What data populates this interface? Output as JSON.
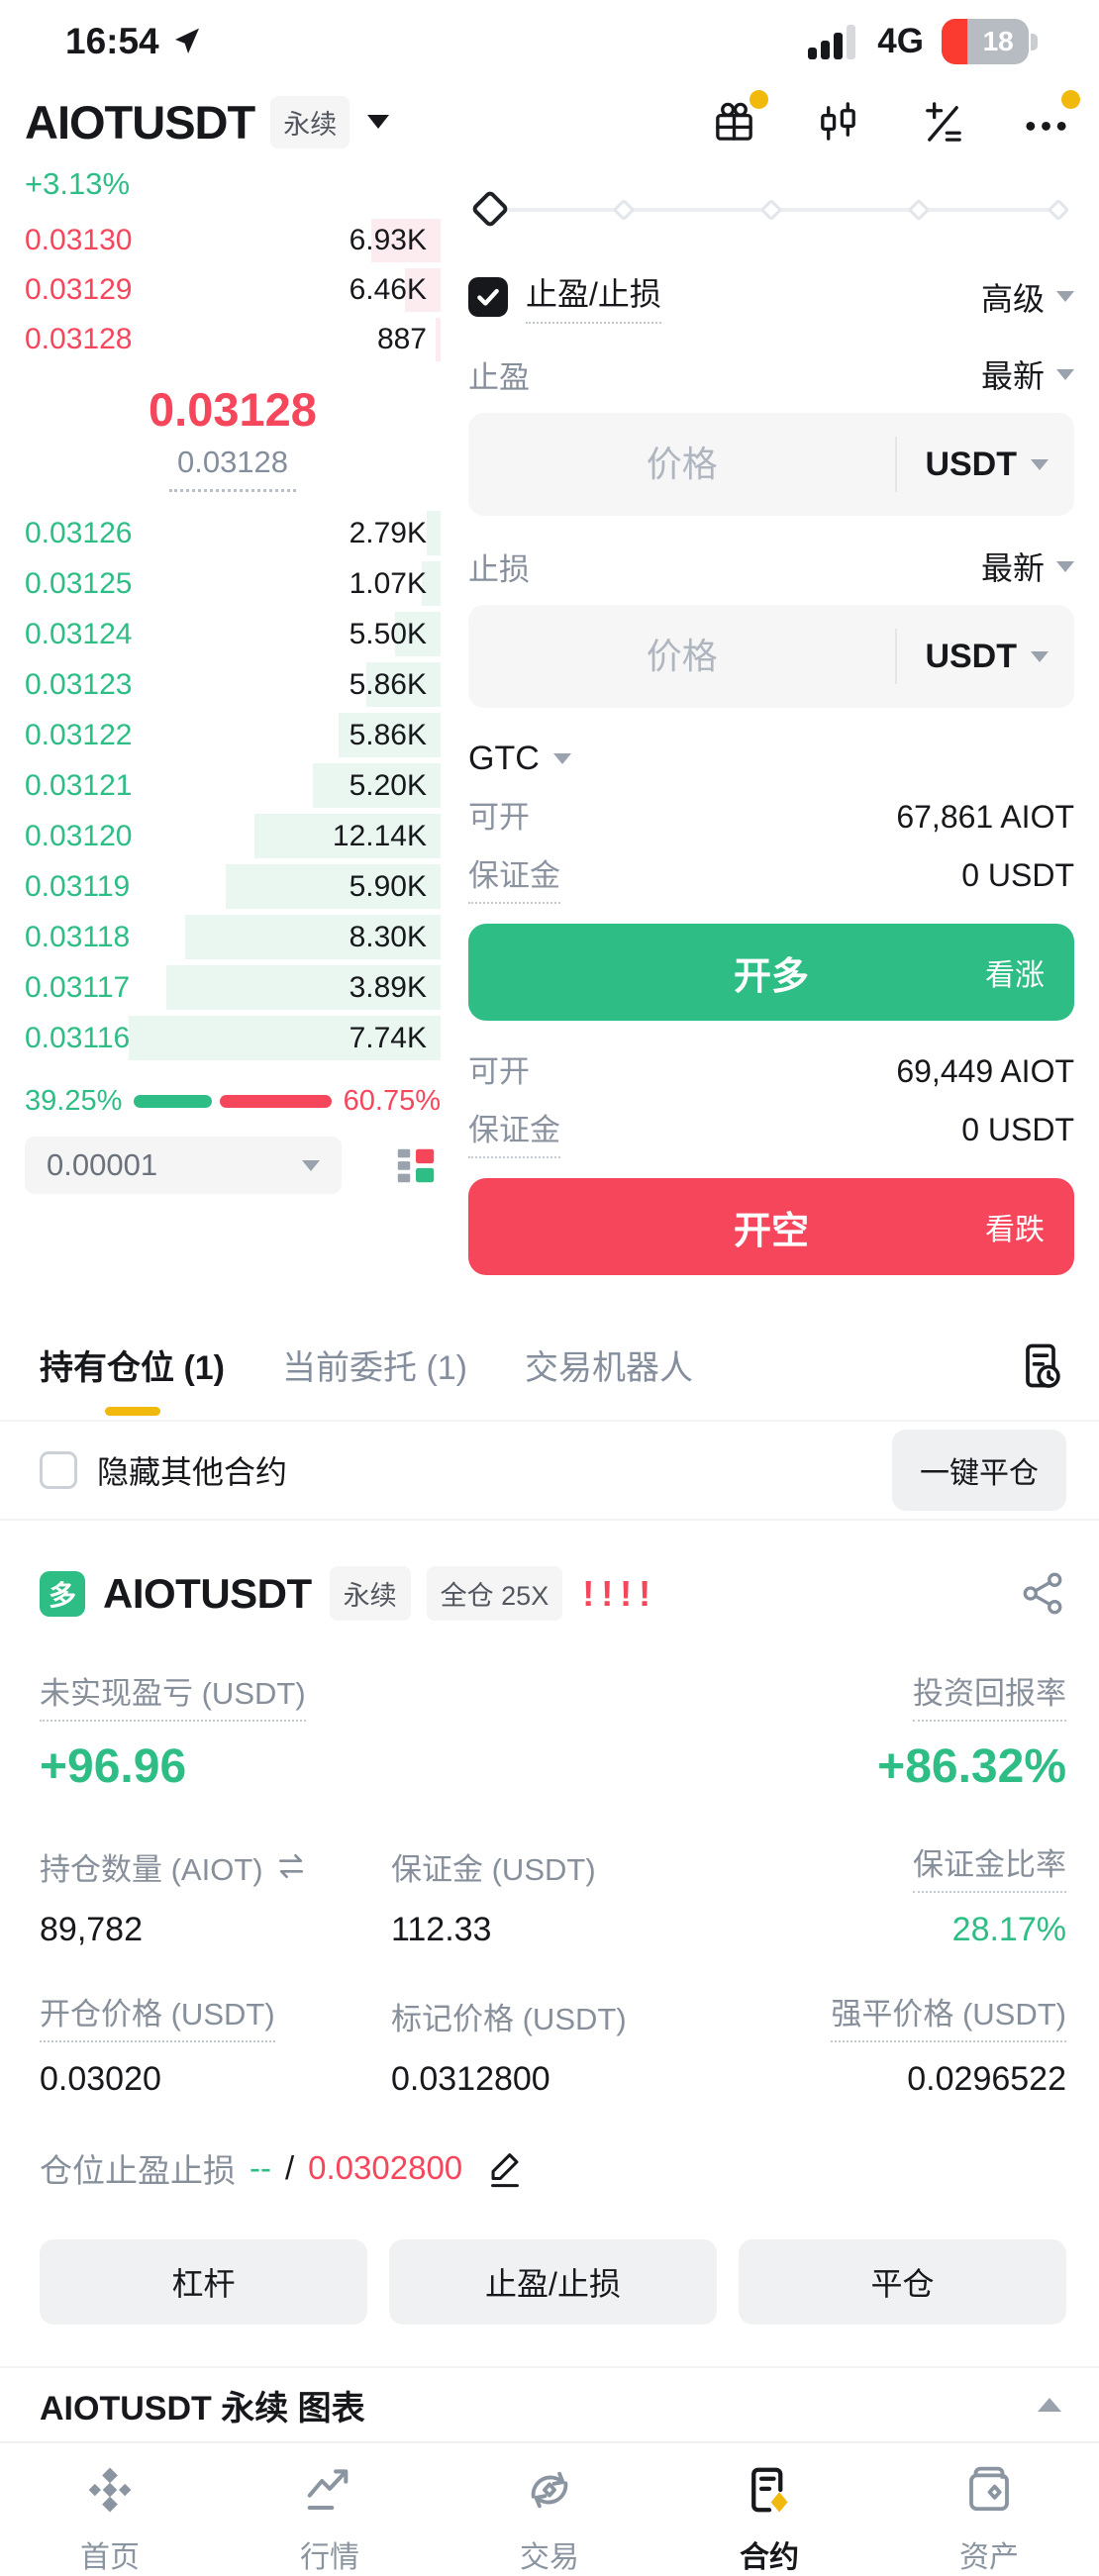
{
  "colors": {
    "red": "#f5465c",
    "green": "#2ebd85",
    "yellow": "#f0b90b"
  },
  "status_bar": {
    "time": "16:54",
    "network": "4G",
    "battery_level": "18"
  },
  "header": {
    "symbol": "AIOTUSDT",
    "contract_badge": "永续",
    "change_percent": "+3.13%"
  },
  "order_book": {
    "asks": [
      {
        "price": "0.03130",
        "qty": "6.93K"
      },
      {
        "price": "0.03129",
        "qty": "6.46K"
      },
      {
        "price": "0.03128",
        "qty": "887"
      }
    ],
    "last_price": "0.03128",
    "mark_price": "0.03128",
    "bids": [
      {
        "price": "0.03126",
        "qty": "2.79K"
      },
      {
        "price": "0.03125",
        "qty": "1.07K"
      },
      {
        "price": "0.03124",
        "qty": "5.50K"
      },
      {
        "price": "0.03123",
        "qty": "5.86K"
      },
      {
        "price": "0.03122",
        "qty": "5.86K"
      },
      {
        "price": "0.03121",
        "qty": "5.20K"
      },
      {
        "price": "0.03120",
        "qty": "12.14K"
      },
      {
        "price": "0.03119",
        "qty": "5.90K"
      },
      {
        "price": "0.03118",
        "qty": "8.30K"
      },
      {
        "price": "0.03117",
        "qty": "3.89K"
      },
      {
        "price": "0.03116",
        "qty": "7.74K"
      }
    ],
    "buy_ratio": "39.25%",
    "sell_ratio": "60.75%",
    "tick_size": "0.00001"
  },
  "order_form": {
    "tpsl_checkbox_label": "止盈/止损",
    "mode": "高级",
    "take_profit_label": "止盈",
    "take_profit_trigger": "最新",
    "stop_loss_label": "止损",
    "stop_loss_trigger": "最新",
    "price_placeholder": "价格",
    "currency": "USDT",
    "time_in_force": "GTC",
    "long": {
      "available_label": "可开",
      "available": "67,861 AIOT",
      "margin_label": "保证金",
      "margin": "0 USDT",
      "button": "开多",
      "hint": "看涨"
    },
    "short": {
      "available_label": "可开",
      "available": "69,449 AIOT",
      "margin_label": "保证金",
      "margin": "0 USDT",
      "button": "开空",
      "hint": "看跌"
    }
  },
  "positions_section": {
    "tabs": [
      {
        "label": "持有仓位 (1)"
      },
      {
        "label": "当前委托 (1)"
      },
      {
        "label": "交易机器人"
      }
    ],
    "hide_other_label": "隐藏其他合约",
    "close_all_button": "一键平仓"
  },
  "position_card": {
    "side_badge": "多",
    "symbol": "AIOTUSDT",
    "contract_badge": "永续",
    "margin_mode_badge": "全仓 25X",
    "risk_marks": "!!!!",
    "pnl_label": "未实现盈亏 (USDT)",
    "pnl_value": "+96.96",
    "roi_label": "投资回报率",
    "roi_value": "+86.32%",
    "size_label": "持仓数量 (AIOT)",
    "size_value": "89,782",
    "margin_label": "保证金 (USDT)",
    "margin_value": "112.33",
    "margin_ratio_label": "保证金比率",
    "margin_ratio_value": "28.17%",
    "entry_label": "开仓价格 (USDT)",
    "entry_value": "0.03020",
    "mark_label": "标记价格 (USDT)",
    "mark_value": "0.0312800",
    "liq_label": "强平价格 (USDT)",
    "liq_value": "0.0296522",
    "tpsl_label": "仓位止盈止损",
    "tpsl_tp": "--",
    "tpsl_sep": "/",
    "tpsl_sl": "0.0302800",
    "buttons": [
      "杠杆",
      "止盈/止损",
      "平仓"
    ]
  },
  "chart_row": {
    "label": "AIOTUSDT 永续 图表"
  },
  "bottom_nav": [
    {
      "label": "首页"
    },
    {
      "label": "行情"
    },
    {
      "label": "交易"
    },
    {
      "label": "合约"
    },
    {
      "label": "资产"
    }
  ]
}
